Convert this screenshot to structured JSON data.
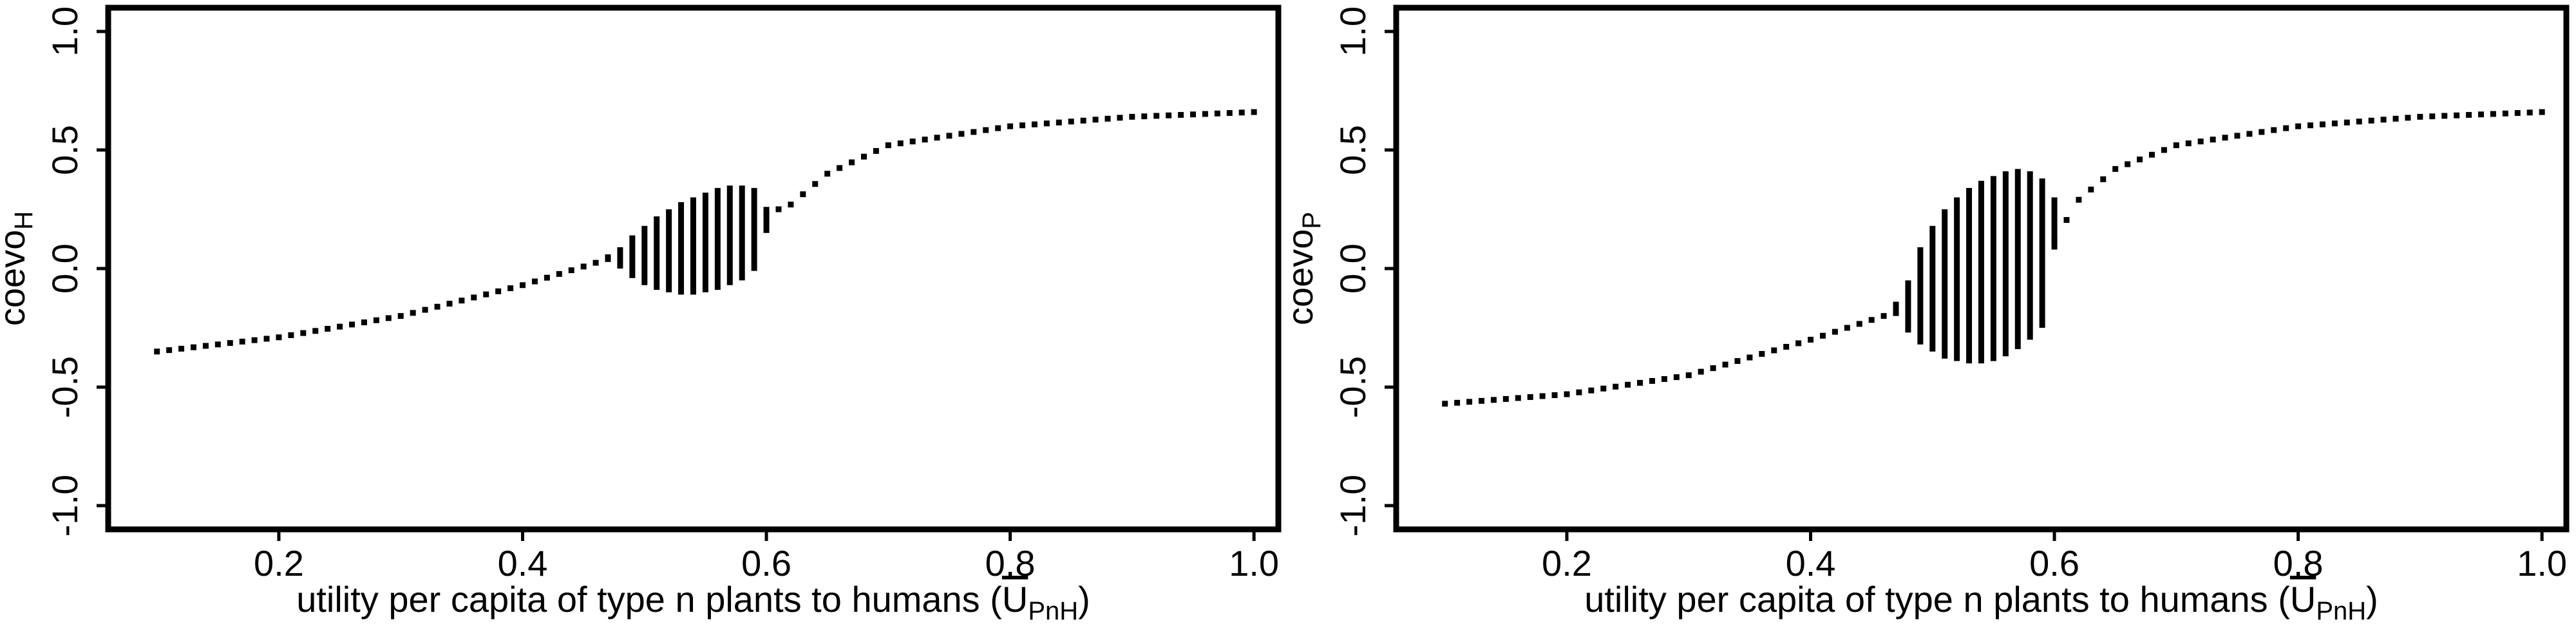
{
  "chart_data": [
    {
      "type": "scatter",
      "panel": "left",
      "ylabel": "coevo",
      "ylabel_sub": "H",
      "xlabel_main": "utility per capita of type n plants to humans (",
      "xlabel_symbol": "U",
      "xlabel_sub": "PnH",
      "xlabel_close": ")",
      "xlim": [
        0.06,
        1.02
      ],
      "ylim": [
        -1.1,
        1.1
      ],
      "xticks": [
        0.2,
        0.4,
        0.6,
        0.8,
        1.0
      ],
      "xtick_labels": [
        "0.2",
        "0.4",
        "0.6",
        "0.8",
        "1.0"
      ],
      "yticks": [
        -1.0,
        -0.5,
        0.0,
        0.5,
        1.0
      ],
      "ytick_labels": [
        "-1.0",
        "-0.5",
        "0.0",
        "0.5",
        "1.0"
      ],
      "grid": false,
      "series": [
        {
          "style": "points",
          "x_start": 0.1,
          "x_end": 1.0,
          "x_step": 0.01,
          "oscillation_range": [
            0.47,
            0.6
          ],
          "x": [
            0.1,
            0.2,
            0.3,
            0.4,
            0.47,
            0.6,
            0.62,
            0.65,
            0.7,
            0.8,
            0.9,
            1.0
          ],
          "y": [
            -0.35,
            -0.29,
            -0.2,
            -0.07,
            0.04,
            0.23,
            0.27,
            0.4,
            0.52,
            0.6,
            0.64,
            0.66
          ]
        },
        {
          "style": "oscillation-range",
          "x": [
            0.47,
            0.48,
            0.49,
            0.5,
            0.51,
            0.52,
            0.53,
            0.54,
            0.55,
            0.56,
            0.57,
            0.58,
            0.59,
            0.6
          ],
          "y_low": [
            0.03,
            0.0,
            -0.04,
            -0.07,
            -0.09,
            -0.1,
            -0.11,
            -0.11,
            -0.1,
            -0.09,
            -0.07,
            -0.05,
            -0.01,
            0.15
          ],
          "y_high": [
            0.06,
            0.09,
            0.14,
            0.18,
            0.22,
            0.25,
            0.28,
            0.3,
            0.32,
            0.34,
            0.35,
            0.35,
            0.34,
            0.26
          ]
        }
      ]
    },
    {
      "type": "scatter",
      "panel": "right",
      "ylabel": "coevo",
      "ylabel_sub": "P",
      "xlabel_main": "utility per capita of type n plants to humans (",
      "xlabel_symbol": "U",
      "xlabel_sub": "PnH",
      "xlabel_close": ")",
      "xlim": [
        0.06,
        1.02
      ],
      "ylim": [
        -1.1,
        1.1
      ],
      "xticks": [
        0.2,
        0.4,
        0.6,
        0.8,
        1.0
      ],
      "xtick_labels": [
        "0.2",
        "0.4",
        "0.6",
        "0.8",
        "1.0"
      ],
      "yticks": [
        -1.0,
        -0.5,
        0.0,
        0.5,
        1.0
      ],
      "ytick_labels": [
        "-1.0",
        "-0.5",
        "0.0",
        "0.5",
        "1.0"
      ],
      "grid": false,
      "series": [
        {
          "style": "points",
          "x_start": 0.1,
          "x_end": 1.0,
          "x_step": 0.01,
          "oscillation_range": [
            0.47,
            0.6
          ],
          "x": [
            0.1,
            0.2,
            0.3,
            0.4,
            0.46,
            0.47,
            0.6,
            0.62,
            0.65,
            0.7,
            0.8,
            0.9,
            1.0
          ],
          "y": [
            -0.57,
            -0.53,
            -0.45,
            -0.3,
            -0.2,
            -0.16,
            0.12,
            0.29,
            0.42,
            0.52,
            0.6,
            0.64,
            0.66
          ]
        },
        {
          "style": "oscillation-range",
          "x": [
            0.47,
            0.48,
            0.49,
            0.5,
            0.51,
            0.52,
            0.53,
            0.54,
            0.55,
            0.56,
            0.57,
            0.58,
            0.59,
            0.6
          ],
          "y_low": [
            -0.2,
            -0.27,
            -0.32,
            -0.35,
            -0.38,
            -0.39,
            -0.4,
            -0.4,
            -0.39,
            -0.37,
            -0.34,
            -0.3,
            -0.25,
            0.08
          ],
          "y_high": [
            -0.14,
            -0.05,
            0.09,
            0.18,
            0.25,
            0.3,
            0.34,
            0.37,
            0.39,
            0.41,
            0.42,
            0.41,
            0.38,
            0.3
          ]
        }
      ]
    }
  ]
}
